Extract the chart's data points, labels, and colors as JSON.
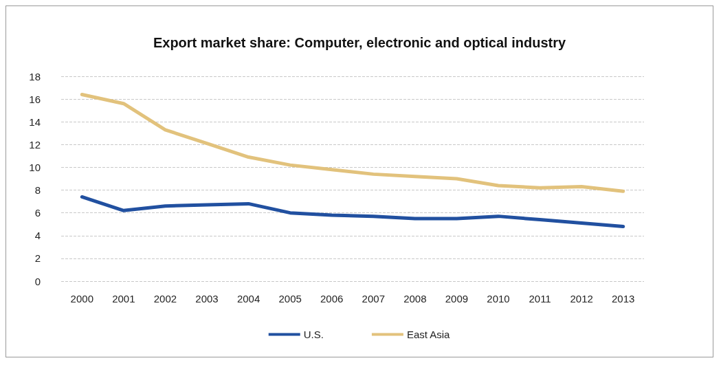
{
  "chart_data": {
    "type": "line",
    "title": "Export market share: Computer, electronic and optical industry",
    "categories": [
      "2000",
      "2001",
      "2002",
      "2003",
      "2004",
      "2005",
      "2006",
      "2007",
      "2008",
      "2009",
      "2010",
      "2011",
      "2012",
      "2013"
    ],
    "series": [
      {
        "name": "U.S.",
        "color": "#2150a0",
        "values": [
          7.4,
          6.2,
          6.6,
          6.7,
          6.8,
          6.0,
          5.8,
          5.7,
          5.5,
          5.5,
          5.7,
          5.4,
          5.1,
          4.8
        ]
      },
      {
        "name": "East Asia",
        "color": "#e2c27c",
        "values": [
          16.4,
          15.6,
          13.3,
          12.1,
          10.9,
          10.2,
          9.8,
          9.4,
          9.2,
          9.0,
          8.4,
          8.2,
          8.3,
          7.9
        ]
      }
    ],
    "ylim": [
      0,
      18
    ],
    "yticks": [
      0,
      2,
      4,
      6,
      8,
      10,
      12,
      14,
      16,
      18
    ],
    "grid": "y",
    "legend": "bottom",
    "marker": "none",
    "line_style": "solid"
  }
}
